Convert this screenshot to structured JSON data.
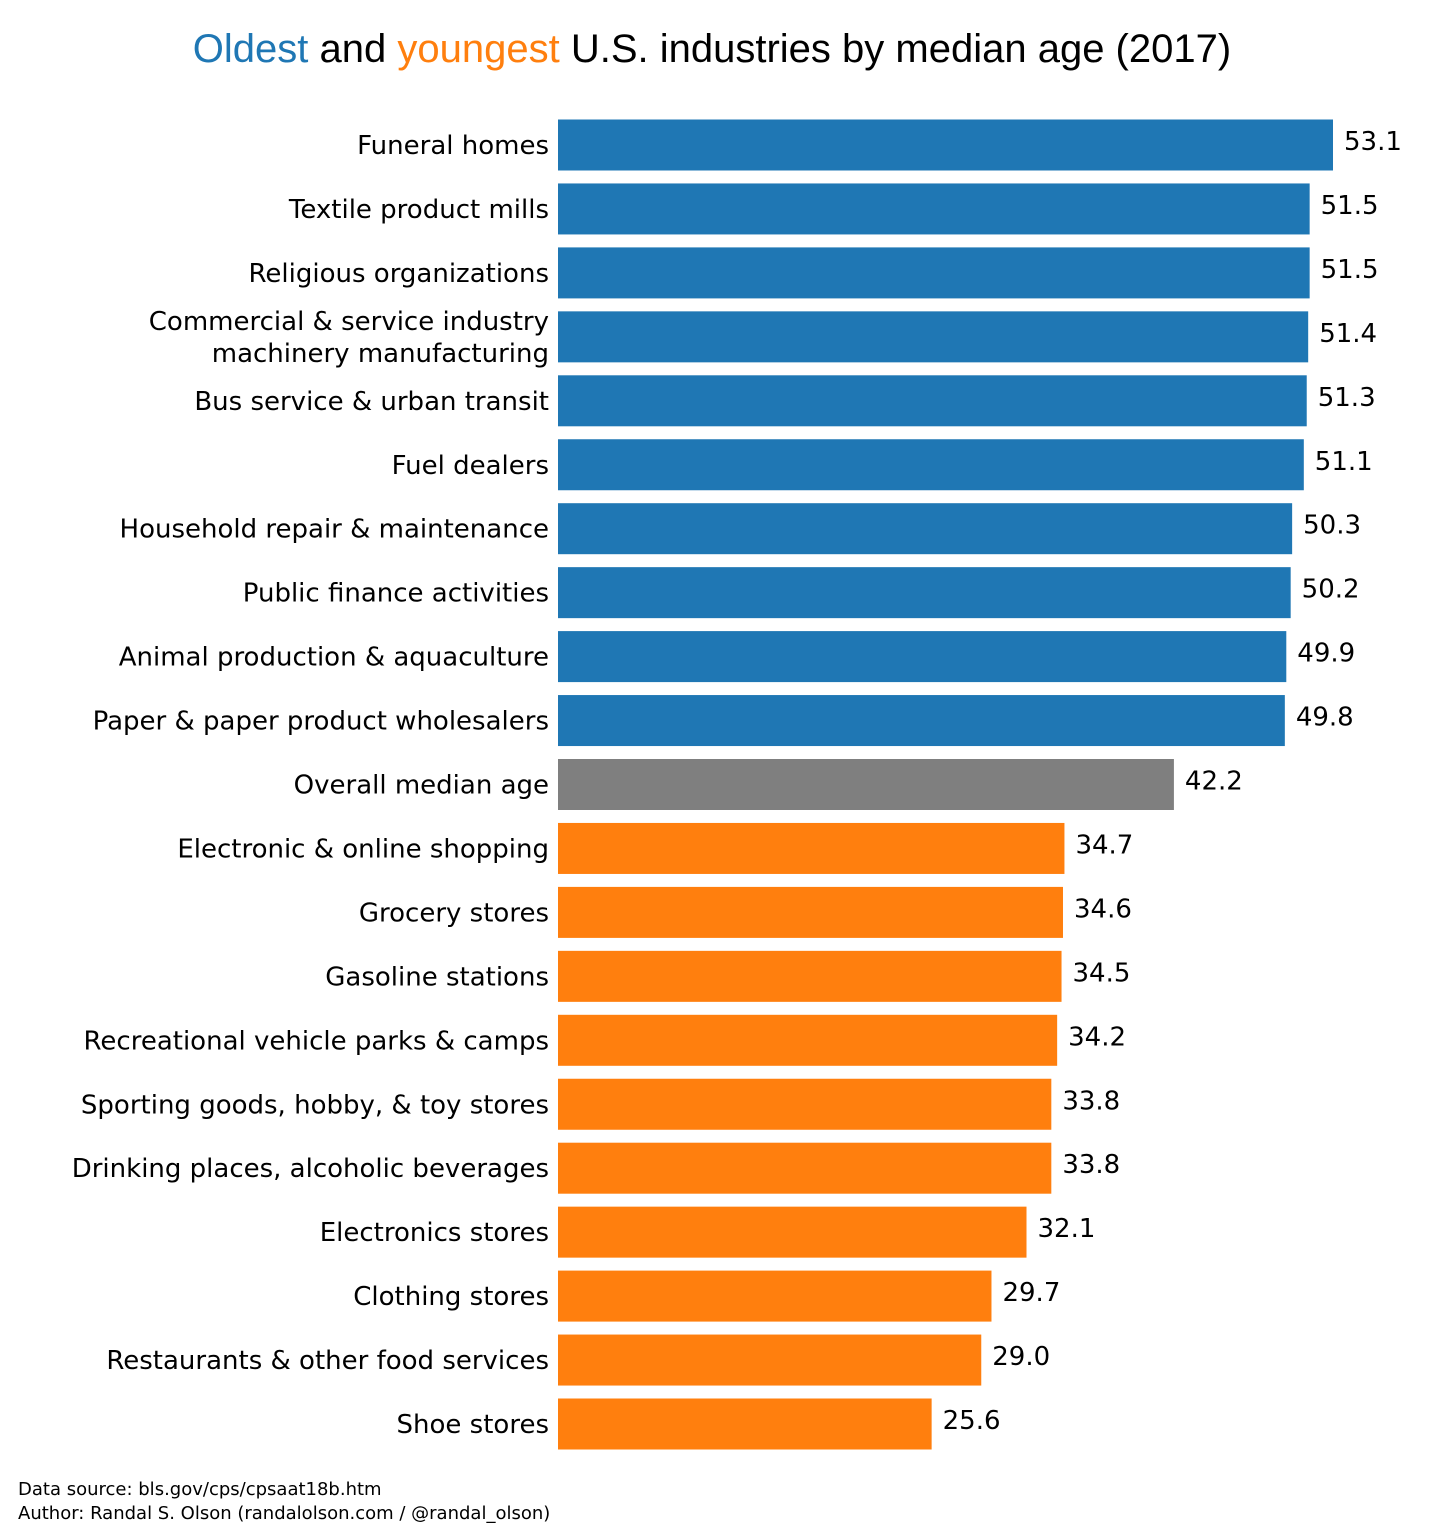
{
  "chart_data": {
    "type": "bar",
    "orientation": "horizontal",
    "title_parts": [
      {
        "text": "Oldest",
        "role": "oldest"
      },
      {
        "text": " and ",
        "role": "plain"
      },
      {
        "text": "youngest",
        "role": "youngest"
      },
      {
        "text": " U.S. industries by median age (2017)",
        "role": "plain"
      }
    ],
    "xlabel": "",
    "ylabel": "",
    "xlim": [
      0,
      53.1
    ],
    "grid": false,
    "colors": {
      "oldest": "#1f77b4",
      "youngest": "#ff7f0e",
      "overall": "#7f7f7f",
      "plain": "#000000"
    },
    "categories": [
      "Funeral homes",
      "Textile product mills",
      "Religious organizations",
      "Commercial & service industry\nmachinery manufacturing",
      "Bus service & urban transit",
      "Fuel dealers",
      "Household repair & maintenance",
      "Public finance activities",
      "Animal production & aquaculture",
      "Paper & paper product wholesalers",
      "Overall median age",
      "Electronic & online shopping",
      "Grocery stores",
      "Gasoline stations",
      "Recreational vehicle parks & camps",
      "Sporting goods, hobby, & toy stores",
      "Drinking places, alcoholic beverages",
      "Electronics stores",
      "Clothing stores",
      "Restaurants & other food services",
      "Shoe stores"
    ],
    "values": [
      53.1,
      51.5,
      51.5,
      51.4,
      51.3,
      51.1,
      50.3,
      50.2,
      49.9,
      49.8,
      42.2,
      34.7,
      34.6,
      34.5,
      34.2,
      33.8,
      33.8,
      32.1,
      29.7,
      29.0,
      25.6
    ],
    "value_labels": [
      "53.1",
      "51.5",
      "51.5",
      "51.4",
      "51.3",
      "51.1",
      "50.3",
      "50.2",
      "49.9",
      "49.8",
      "42.2",
      "34.7",
      "34.6",
      "34.5",
      "34.2",
      "33.8",
      "33.8",
      "32.1",
      "29.7",
      "29.0",
      "25.6"
    ],
    "groups": [
      "oldest",
      "oldest",
      "oldest",
      "oldest",
      "oldest",
      "oldest",
      "oldest",
      "oldest",
      "oldest",
      "oldest",
      "overall",
      "youngest",
      "youngest",
      "youngest",
      "youngest",
      "youngest",
      "youngest",
      "youngest",
      "youngest",
      "youngest",
      "youngest"
    ]
  },
  "footer": {
    "source": "Data source: bls.gov/cps/cpsaat18b.htm",
    "author": "Author: Randal S. Olson (randalolson.com / @randal_olson)"
  }
}
